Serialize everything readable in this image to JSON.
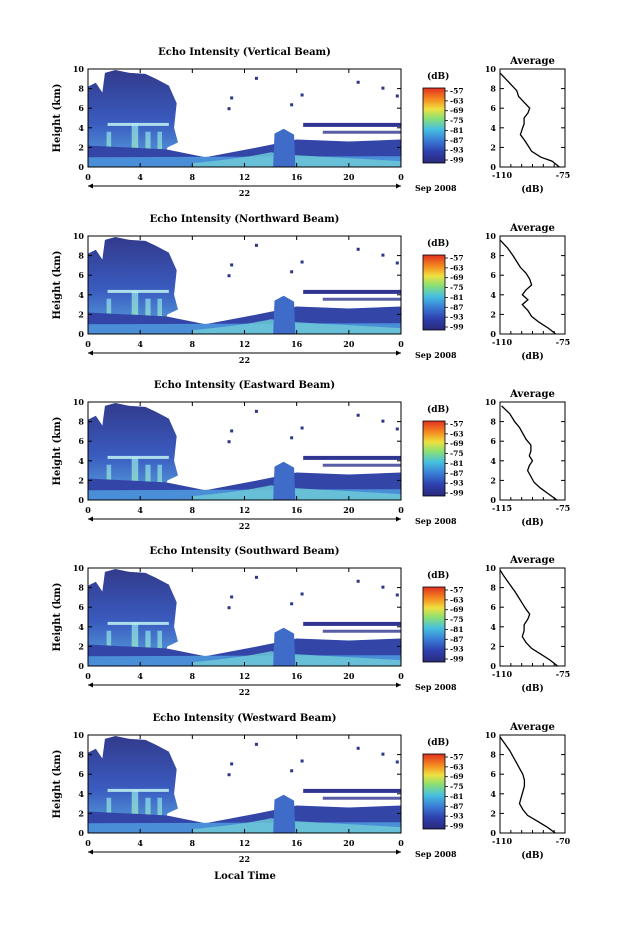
{
  "footer_label": "Local Time",
  "chart_data": [
    {
      "type": "heatmap",
      "title": "Echo Intensity (Vertical Beam)",
      "ylabel": "Height (km)",
      "ylim": [
        0,
        10
      ],
      "x_ticks": [
        "0",
        "4",
        "8",
        "12",
        "16",
        "20",
        "0"
      ],
      "day_label": "22",
      "month_label": "Sep 2008",
      "colorbar": {
        "unit": "(dB)",
        "ticks": [
          "-57",
          "-63",
          "-69",
          "-75",
          "-81",
          "-87",
          "-93",
          "-99"
        ]
      },
      "profile": {
        "title": "Average",
        "xlabel": "(dB)",
        "xlim": [
          -110,
          -75
        ],
        "x_ticks": [
          "-110",
          "-75"
        ],
        "y_ticks": [
          "0",
          "2",
          "4",
          "6",
          "8",
          "10"
        ],
        "points": [
          [
            -78,
            0
          ],
          [
            -82,
            0.6
          ],
          [
            -88,
            1
          ],
          [
            -93,
            1.6
          ],
          [
            -95,
            2.2
          ],
          [
            -97,
            2.8
          ],
          [
            -99,
            3.3
          ],
          [
            -98,
            3.9
          ],
          [
            -97,
            4.4
          ],
          [
            -97,
            5
          ],
          [
            -95,
            5.5
          ],
          [
            -94,
            6
          ],
          [
            -97,
            6.6
          ],
          [
            -100,
            7.2
          ],
          [
            -101,
            7.8
          ],
          [
            -104,
            8.4
          ],
          [
            -107,
            9
          ],
          [
            -110,
            9.6
          ]
        ]
      }
    },
    {
      "type": "heatmap",
      "title": "Echo Intensity (Northward Beam)",
      "ylabel": "Height (km)",
      "ylim": [
        0,
        10
      ],
      "x_ticks": [
        "0",
        "4",
        "8",
        "12",
        "16",
        "20",
        "0"
      ],
      "day_label": "22",
      "month_label": "Sep 2008",
      "colorbar": {
        "unit": "(dB)",
        "ticks": [
          "-57",
          "-63",
          "-69",
          "-75",
          "-81",
          "-87",
          "-93",
          "-99"
        ]
      },
      "profile": {
        "title": "Average",
        "xlabel": "(dB)",
        "xlim": [
          -110,
          -75
        ],
        "x_ticks": [
          "-110",
          "-75"
        ],
        "y_ticks": [
          "0",
          "2",
          "4",
          "6",
          "8",
          "10"
        ],
        "points": [
          [
            -80,
            0
          ],
          [
            -84,
            0.6
          ],
          [
            -89,
            1.2
          ],
          [
            -93,
            1.8
          ],
          [
            -95,
            2.4
          ],
          [
            -98,
            3
          ],
          [
            -95,
            3.5
          ],
          [
            -98,
            4
          ],
          [
            -96,
            4.5
          ],
          [
            -93,
            5
          ],
          [
            -94,
            5.6
          ],
          [
            -96,
            6.2
          ],
          [
            -99,
            6.8
          ],
          [
            -101,
            7.4
          ],
          [
            -103,
            8
          ],
          [
            -106,
            8.8
          ],
          [
            -110,
            9.6
          ]
        ]
      }
    },
    {
      "type": "heatmap",
      "title": "Echo Intensity (Eastward Beam)",
      "ylabel": "Height (km)",
      "ylim": [
        0,
        10
      ],
      "x_ticks": [
        "0",
        "4",
        "8",
        "12",
        "16",
        "20",
        "0"
      ],
      "day_label": "22",
      "month_label": "Sep 2008",
      "colorbar": {
        "unit": "(dB)",
        "ticks": [
          "-57",
          "-63",
          "-69",
          "-75",
          "-81",
          "-87",
          "-93",
          "-99"
        ]
      },
      "profile": {
        "title": "Average",
        "xlabel": "(dB)",
        "xlim": [
          -115,
          -75
        ],
        "x_ticks": [
          "-115",
          "-75"
        ],
        "y_ticks": [
          "0",
          "2",
          "4",
          "6",
          "8",
          "10"
        ],
        "points": [
          [
            -80,
            0
          ],
          [
            -85,
            0.6
          ],
          [
            -90,
            1.2
          ],
          [
            -94,
            1.8
          ],
          [
            -96,
            2.4
          ],
          [
            -98,
            3
          ],
          [
            -97,
            3.5
          ],
          [
            -95,
            4
          ],
          [
            -97,
            4.5
          ],
          [
            -96,
            5
          ],
          [
            -96,
            5.6
          ],
          [
            -99,
            6.2
          ],
          [
            -101,
            6.8
          ],
          [
            -103,
            7.4
          ],
          [
            -106,
            8
          ],
          [
            -109,
            8.8
          ],
          [
            -114,
            9.6
          ]
        ]
      }
    },
    {
      "type": "heatmap",
      "title": "Echo Intensity (Southward Beam)",
      "ylabel": "Height (km)",
      "ylim": [
        0,
        10
      ],
      "x_ticks": [
        "0",
        "4",
        "8",
        "12",
        "16",
        "20",
        "0"
      ],
      "day_label": "22",
      "month_label": "Sep 2008",
      "colorbar": {
        "unit": "(dB)",
        "ticks": [
          "-57",
          "-63",
          "-69",
          "-75",
          "-81",
          "-87",
          "-93",
          "-99"
        ]
      },
      "profile": {
        "title": "Average",
        "xlabel": "(dB)",
        "xlim": [
          -110,
          -75
        ],
        "x_ticks": [
          "-110",
          "-75"
        ],
        "y_ticks": [
          "0",
          "2",
          "4",
          "6",
          "8",
          "10"
        ],
        "points": [
          [
            -79,
            0
          ],
          [
            -83,
            0.6
          ],
          [
            -88,
            1.2
          ],
          [
            -93,
            1.8
          ],
          [
            -96,
            2.4
          ],
          [
            -98,
            3
          ],
          [
            -97,
            3.6
          ],
          [
            -97,
            4.2
          ],
          [
            -95,
            4.8
          ],
          [
            -94,
            5.3
          ],
          [
            -96,
            5.8
          ],
          [
            -98,
            6.4
          ],
          [
            -100,
            7
          ],
          [
            -102,
            7.6
          ],
          [
            -105,
            8.4
          ],
          [
            -108,
            9.2
          ],
          [
            -110,
            9.8
          ]
        ]
      }
    },
    {
      "type": "heatmap",
      "title": "Echo Intensity (Westward Beam)",
      "ylabel": "Height (km)",
      "ylim": [
        0,
        10
      ],
      "x_ticks": [
        "0",
        "4",
        "8",
        "12",
        "16",
        "20",
        "0"
      ],
      "day_label": "22",
      "month_label": "Sep 2008",
      "colorbar": {
        "unit": "(dB)",
        "ticks": [
          "-57",
          "-63",
          "-69",
          "-75",
          "-81",
          "-87",
          "-93",
          "-99"
        ]
      },
      "profile": {
        "title": "Average",
        "xlabel": "(dB)",
        "xlim": [
          -110,
          -70
        ],
        "x_ticks": [
          "-110",
          "-70"
        ],
        "y_ticks": [
          "0",
          "2",
          "4",
          "6",
          "8",
          "10"
        ],
        "points": [
          [
            -76,
            0
          ],
          [
            -81,
            0.6
          ],
          [
            -87,
            1.2
          ],
          [
            -93,
            1.8
          ],
          [
            -96,
            2.4
          ],
          [
            -98,
            3
          ],
          [
            -97,
            3.6
          ],
          [
            -96,
            4.2
          ],
          [
            -95,
            4.8
          ],
          [
            -95,
            5.4
          ],
          [
            -96,
            6
          ],
          [
            -98,
            6.6
          ],
          [
            -100,
            7.2
          ],
          [
            -102,
            7.8
          ],
          [
            -104,
            8.4
          ],
          [
            -107,
            9.1
          ],
          [
            -110,
            9.8
          ]
        ]
      }
    }
  ]
}
